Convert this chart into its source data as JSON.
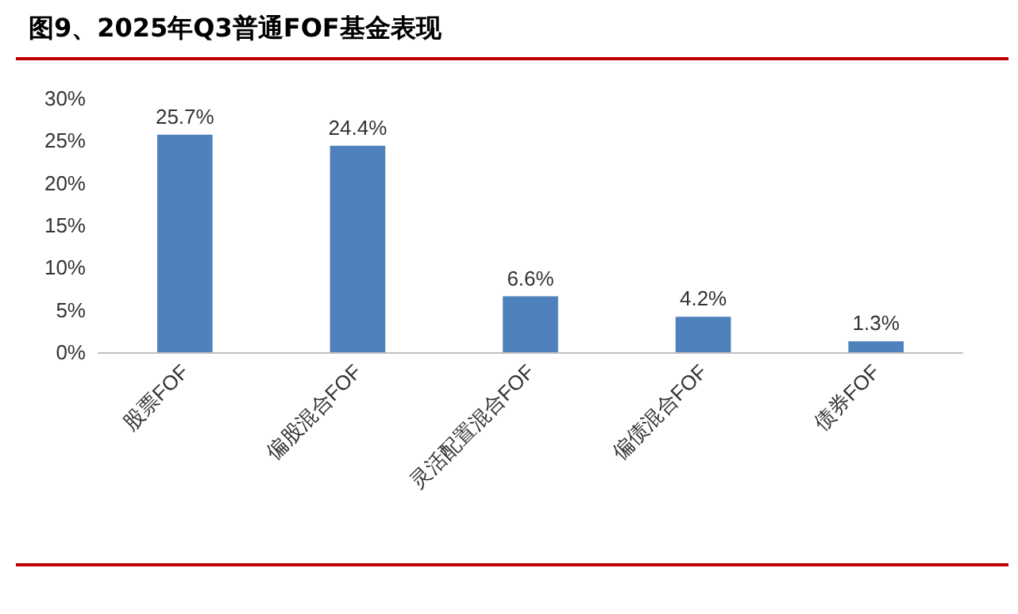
{
  "chart_data": {
    "type": "bar",
    "title": "图9、2025年Q3普通FOF基金表现",
    "categories": [
      "股票FOF",
      "偏股混合FOF",
      "灵活配置混合FOF",
      "偏债混合FOF",
      "债券FOF"
    ],
    "values": [
      25.7,
      24.4,
      6.6,
      4.2,
      1.3
    ],
    "value_labels": [
      "25.7%",
      "24.4%",
      "6.6%",
      "4.2%",
      "1.3%"
    ],
    "color": "#4f81bd",
    "ylim": [
      0,
      30
    ],
    "yticks": [
      {
        "value": 0,
        "label": "0%"
      },
      {
        "value": 5,
        "label": "5%"
      },
      {
        "value": 10,
        "label": "10%"
      },
      {
        "value": 15,
        "label": "15%"
      },
      {
        "value": 20,
        "label": "20%"
      },
      {
        "value": 25,
        "label": "25%"
      },
      {
        "value": 30,
        "label": "30%"
      }
    ],
    "grid": false
  }
}
